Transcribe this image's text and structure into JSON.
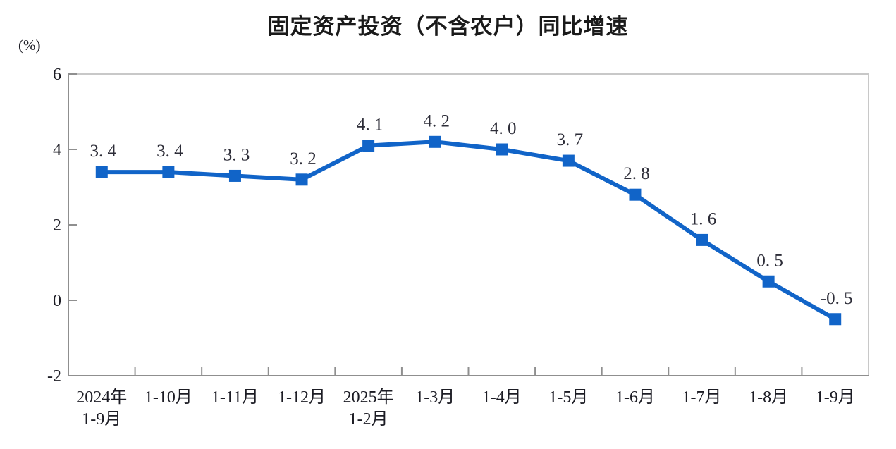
{
  "chart_data": {
    "type": "line",
    "title": "固定资产投资（不含农户）同比增速",
    "xlabel": "",
    "ylabel": "(%)",
    "ylim": [
      -2,
      6
    ],
    "yticks": [
      6,
      4,
      2,
      0,
      -2
    ],
    "categories": [
      "2024年\n1-9月",
      "1-10月",
      "1-11月",
      "1-12月",
      "2025年\n1-2月",
      "1-3月",
      "1-4月",
      "1-5月",
      "1-6月",
      "1-7月",
      "1-8月",
      "1-9月"
    ],
    "values": [
      3.4,
      3.4,
      3.3,
      3.2,
      4.1,
      4.2,
      4.0,
      3.7,
      2.8,
      1.6,
      0.5,
      -0.5
    ],
    "point_labels": [
      "3. 4",
      "3. 4",
      "3. 3",
      "3. 2",
      "4. 1",
      "4. 2",
      "4. 0",
      "3. 7",
      "2. 8",
      "1. 6",
      "0. 5",
      "-0. 5"
    ],
    "grid": false,
    "legend_position": "none",
    "colors": {
      "line": "#1164c8",
      "marker": "#1164c8",
      "point_label_text": "#2d2d38",
      "axis_text": "#1c1c24",
      "axis_line": "#8f8f8f",
      "frame_line": "#c8c8c8"
    }
  }
}
